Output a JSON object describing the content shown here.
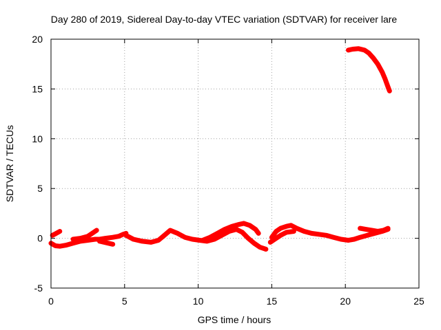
{
  "chart_data": {
    "type": "scatter",
    "title": "Day 280 of 2019, Sidereal Day-to-day VTEC variation (SDTVAR) for receiver lare",
    "xlabel": "GPS time / hours",
    "ylabel": "SDTVAR / TECUs",
    "xlim": [
      0,
      25
    ],
    "ylim": [
      -5,
      20
    ],
    "xticks": [
      0,
      5,
      10,
      15,
      20,
      25
    ],
    "yticks": [
      -5,
      0,
      5,
      10,
      15,
      20
    ],
    "grid": true,
    "series": [
      {
        "name": "SDTVAR",
        "color": "#ff0000",
        "segments": [
          {
            "x": [
              0.1,
              0.3,
              0.6
            ],
            "y": [
              0.3,
              0.45,
              0.7
            ]
          },
          {
            "x": [
              0.0,
              0.3,
              0.6,
              1.0,
              1.5,
              2.0,
              2.5,
              3.0,
              3.3,
              3.7,
              4.2,
              4.6,
              4.9,
              5.1
            ],
            "y": [
              -0.5,
              -0.75,
              -0.8,
              -0.7,
              -0.5,
              -0.3,
              -0.2,
              -0.1,
              -0.1,
              0.0,
              0.1,
              0.2,
              0.4,
              0.5
            ]
          },
          {
            "x": [
              1.5,
              2.0,
              2.5,
              2.8,
              3.1
            ],
            "y": [
              -0.1,
              0.0,
              0.2,
              0.5,
              0.8
            ]
          },
          {
            "x": [
              3.3,
              3.6,
              3.9,
              4.2
            ],
            "y": [
              -0.3,
              -0.4,
              -0.5,
              -0.6
            ]
          },
          {
            "x": [
              5.1,
              5.6,
              6.2,
              6.8,
              7.3,
              7.7,
              8.1,
              8.6,
              9.1,
              9.6,
              10.1,
              10.6,
              11.1,
              11.6,
              12.1,
              12.6,
              13.0,
              13.4,
              13.8,
              14.2,
              14.6
            ],
            "y": [
              0.3,
              -0.1,
              -0.3,
              -0.4,
              -0.2,
              0.3,
              0.8,
              0.5,
              0.1,
              -0.1,
              -0.2,
              -0.3,
              -0.1,
              0.3,
              0.7,
              0.9,
              0.6,
              0.0,
              -0.5,
              -0.9,
              -1.1
            ]
          },
          {
            "x": [
              10.3,
              10.8,
              11.3,
              11.8,
              12.3,
              12.8,
              13.1,
              13.5,
              13.9,
              14.1
            ],
            "y": [
              -0.2,
              0.1,
              0.5,
              0.9,
              1.2,
              1.4,
              1.5,
              1.3,
              0.9,
              0.5
            ]
          },
          {
            "x": [
              15.0,
              15.3,
              15.6,
              16.0,
              16.3,
              16.7,
              17.2,
              17.7,
              18.2,
              18.7,
              19.2,
              19.7,
              20.2,
              20.6,
              21.0,
              21.5,
              22.0,
              22.5,
              22.9
            ],
            "y": [
              0.1,
              0.7,
              1.0,
              1.2,
              1.3,
              1.0,
              0.7,
              0.5,
              0.4,
              0.3,
              0.1,
              -0.1,
              -0.2,
              -0.1,
              0.1,
              0.3,
              0.5,
              0.7,
              0.9
            ]
          },
          {
            "x": [
              14.9,
              15.2,
              15.6,
              16.0,
              16.5
            ],
            "y": [
              -0.4,
              -0.1,
              0.3,
              0.6,
              0.7
            ]
          },
          {
            "x": [
              21.0,
              21.4,
              21.8,
              22.2,
              22.6,
              22.9
            ],
            "y": [
              1.0,
              0.9,
              0.8,
              0.7,
              0.8,
              1.0
            ]
          },
          {
            "x": [
              20.2,
              20.5,
              20.9,
              21.3,
              21.6,
              21.9,
              22.2,
              22.5,
              22.7,
              22.9,
              23.0
            ],
            "y": [
              18.9,
              19.0,
              19.05,
              18.9,
              18.6,
              18.1,
              17.5,
              16.7,
              16.0,
              15.2,
              14.8
            ]
          }
        ]
      }
    ]
  }
}
